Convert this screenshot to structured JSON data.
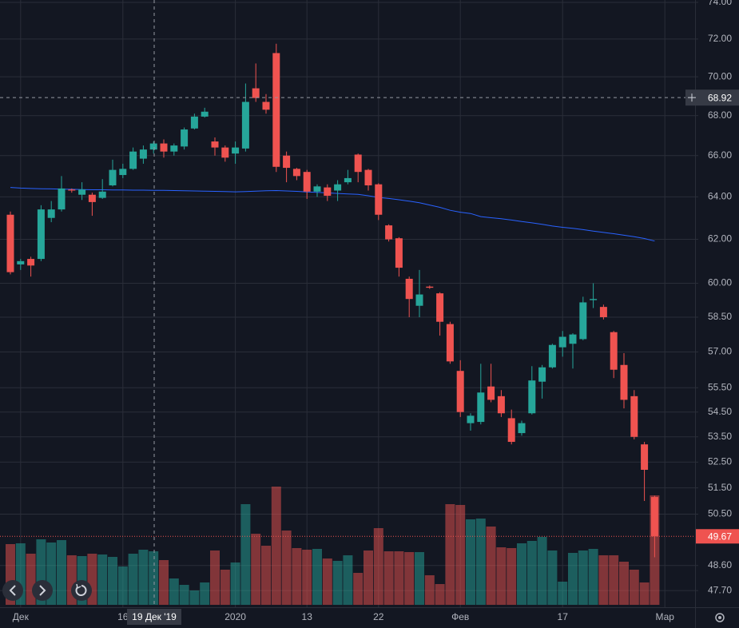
{
  "chart_data": {
    "type": "candlestick",
    "categories": [
      null,
      "Дек",
      null,
      null,
      null,
      null,
      null,
      null,
      null,
      null,
      null,
      "16",
      null,
      null,
      null,
      null,
      null,
      null,
      null,
      null,
      null,
      null,
      "2020",
      null,
      null,
      null,
      null,
      null,
      null,
      "13",
      null,
      null,
      null,
      null,
      null,
      null,
      "22",
      null,
      null,
      null,
      null,
      null,
      null,
      null,
      "Фев",
      null,
      null,
      null,
      null,
      null,
      null,
      null,
      null,
      null,
      "17",
      null,
      null,
      null,
      null,
      null,
      null,
      null,
      null,
      null,
      "Мар"
    ],
    "open": [
      63.15,
      60.85,
      61.1,
      61.1,
      63.0,
      63.4,
      64.35,
      64.1,
      64.1,
      63.95,
      64.55,
      65.05,
      65.35,
      65.85,
      66.3,
      66.6,
      66.2,
      66.45,
      67.35,
      67.95,
      66.7,
      66.4,
      66.1,
      66.35,
      69.4,
      68.7,
      71.25,
      66.0,
      65.35,
      65.2,
      64.25,
      64.45,
      64.3,
      64.7,
      66.05,
      65.3,
      64.6,
      62.65,
      62.05,
      60.2,
      59.0,
      59.85,
      59.55,
      58.2,
      56.2,
      54.05,
      54.1,
      55.55,
      55.15,
      54.25,
      53.65,
      54.45,
      55.75,
      56.35,
      57.2,
      57.35,
      57.55,
      59.25,
      58.95,
      57.85,
      56.45,
      55.15,
      53.2,
      51.15,
      null
    ],
    "high": [
      63.3,
      61.1,
      61.2,
      63.6,
      63.8,
      65.0,
      64.4,
      64.7,
      64.2,
      64.85,
      65.8,
      65.6,
      66.4,
      66.5,
      66.7,
      66.8,
      66.6,
      67.4,
      68.1,
      68.4,
      66.9,
      66.5,
      66.7,
      69.65,
      70.7,
      69.1,
      71.75,
      66.2,
      65.4,
      65.3,
      64.6,
      64.6,
      64.8,
      65.3,
      66.1,
      65.35,
      64.65,
      62.7,
      62.1,
      60.3,
      60.6,
      59.9,
      59.6,
      58.3,
      56.65,
      54.45,
      56.5,
      56.5,
      55.4,
      54.6,
      54.15,
      56.4,
      56.45,
      57.35,
      57.9,
      57.8,
      59.4,
      60.0,
      59.05,
      57.9,
      56.95,
      55.4,
      53.3,
      51.2,
      null
    ],
    "low": [
      60.4,
      60.6,
      60.3,
      61.0,
      62.8,
      63.3,
      64.2,
      63.85,
      63.1,
      63.9,
      64.5,
      64.9,
      65.3,
      65.6,
      66.1,
      65.9,
      66.0,
      66.3,
      67.3,
      67.9,
      66.0,
      65.7,
      65.6,
      66.2,
      68.7,
      68.1,
      65.2,
      64.7,
      64.8,
      63.9,
      64.0,
      63.8,
      63.8,
      64.6,
      64.7,
      64.3,
      62.9,
      61.9,
      60.3,
      58.5,
      58.5,
      59.75,
      57.7,
      56.5,
      54.3,
      53.75,
      54.0,
      54.9,
      54.3,
      53.2,
      53.55,
      54.4,
      55.05,
      56.3,
      56.8,
      56.3,
      57.5,
      58.9,
      58.4,
      55.9,
      54.65,
      53.4,
      51.0,
      48.9,
      null
    ],
    "close": [
      60.5,
      61.0,
      60.8,
      63.4,
      63.4,
      64.4,
      64.3,
      64.35,
      63.75,
      64.25,
      65.3,
      65.35,
      66.2,
      66.3,
      66.6,
      66.2,
      66.5,
      67.3,
      67.95,
      68.2,
      66.4,
      65.9,
      66.4,
      68.7,
      68.9,
      68.3,
      65.45,
      65.4,
      65.0,
      64.25,
      64.5,
      64.05,
      64.6,
      64.9,
      65.2,
      64.55,
      63.15,
      62.0,
      60.7,
      59.3,
      59.5,
      59.8,
      58.3,
      56.6,
      54.5,
      54.35,
      55.3,
      55.0,
      54.45,
      53.3,
      54.05,
      55.8,
      56.35,
      57.3,
      57.65,
      57.75,
      59.15,
      59.3,
      58.5,
      56.25,
      55.0,
      53.5,
      52.2,
      49.67,
      null
    ],
    "volume": [
      76,
      77,
      64,
      82,
      78,
      81,
      62,
      61,
      64,
      63,
      60,
      48,
      64,
      69,
      67,
      56,
      33,
      25,
      18,
      28,
      68,
      44,
      53,
      126,
      89,
      74,
      148,
      93,
      71,
      69,
      70,
      58,
      55,
      62,
      40,
      68,
      96,
      67,
      67,
      66,
      66,
      37,
      26,
      126,
      125,
      107,
      108,
      98,
      72,
      71,
      77,
      80,
      85,
      68,
      29,
      65,
      68,
      70,
      62,
      62,
      54,
      44,
      28,
      137,
      null
    ],
    "ma": {
      "color": "#2962ff",
      "values": [
        64.45,
        64.42,
        64.4,
        64.39,
        64.38,
        64.37,
        64.36,
        64.35,
        64.34,
        64.34,
        64.33,
        64.33,
        64.32,
        64.32,
        64.31,
        64.31,
        64.3,
        64.29,
        64.28,
        64.27,
        64.26,
        64.25,
        64.24,
        64.25,
        64.27,
        64.29,
        64.3,
        64.28,
        64.26,
        64.23,
        64.21,
        64.19,
        64.16,
        64.14,
        64.12,
        64.05,
        63.97,
        63.92,
        63.86,
        63.79,
        63.72,
        63.61,
        63.5,
        63.36,
        63.27,
        63.21,
        63.06,
        63.01,
        62.96,
        62.9,
        62.83,
        62.77,
        62.7,
        62.62,
        62.56,
        62.51,
        62.45,
        62.38,
        62.32,
        62.26,
        62.19,
        62.12,
        62.04,
        61.92,
        null
      ]
    },
    "up_color": "#26a69a",
    "down_color": "#ef5350",
    "log_scale": true,
    "grid": true,
    "ylim": [
      47.11,
      74.13
    ],
    "yticks": [
      {
        "value": 74,
        "label": "74.00"
      },
      {
        "value": 72,
        "label": "72.00"
      },
      {
        "value": 70,
        "label": "70.00"
      },
      {
        "value": 68,
        "label": "68.00"
      },
      {
        "value": 66,
        "label": "66.00"
      },
      {
        "value": 64,
        "label": "64.00"
      },
      {
        "value": 62,
        "label": "62.00"
      },
      {
        "value": 60,
        "label": "60.00"
      },
      {
        "value": 58.5,
        "label": "58.50"
      },
      {
        "value": 57,
        "label": "57.00"
      },
      {
        "value": 55.5,
        "label": "55.50"
      },
      {
        "value": 54.5,
        "label": "54.50"
      },
      {
        "value": 53.5,
        "label": "53.50"
      },
      {
        "value": 52.5,
        "label": "52.50"
      },
      {
        "value": 51.5,
        "label": "51.50"
      },
      {
        "value": 50.5,
        "label": "50.50"
      },
      {
        "value": 48.6,
        "label": "48.60"
      },
      {
        "value": 47.7,
        "label": "47.70"
      }
    ],
    "crosshair": {
      "x_label": "19 Дек '19",
      "price": {
        "value": 68.92,
        "label": "68.92"
      }
    },
    "last_price": {
      "value": 49.67,
      "label": "49.67"
    }
  }
}
